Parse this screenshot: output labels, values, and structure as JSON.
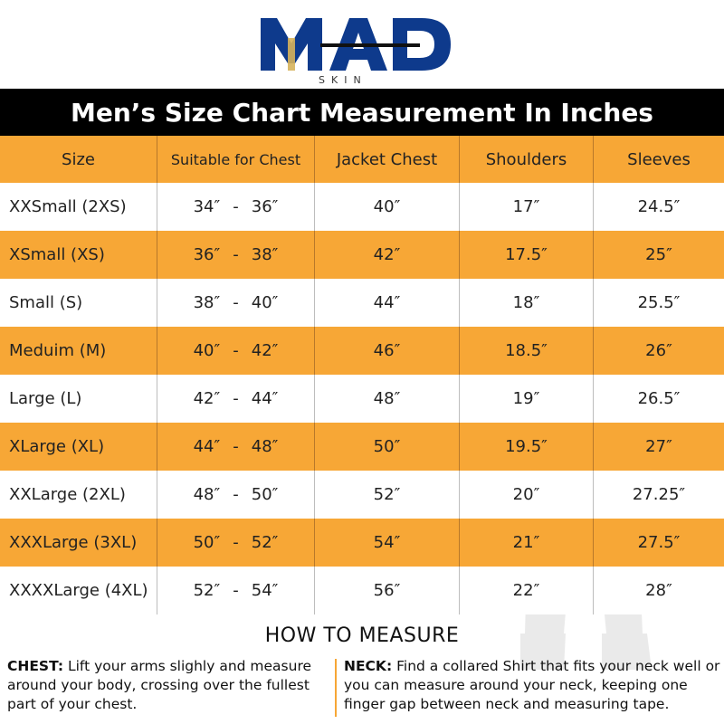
{
  "logo": {
    "main": "MAD",
    "sub": "SKIN"
  },
  "title": "Men’s Size Chart Measurement In Inches",
  "columns": [
    "Size",
    "Suitable for Chest",
    "Jacket Chest",
    "Shoulders",
    "Sleeves"
  ],
  "rows": [
    {
      "size": "XXSmall (2XS)",
      "chest_from": "34″",
      "sep": "-",
      "chest_to": "36″",
      "jacket": "40″",
      "shoulders": "17″",
      "sleeves": "24.5″"
    },
    {
      "size": "XSmall (XS)",
      "chest_from": "36″",
      "sep": "-",
      "chest_to": "38″",
      "jacket": "42″",
      "shoulders": "17.5″",
      "sleeves": "25″"
    },
    {
      "size": "Small (S)",
      "chest_from": "38″",
      "sep": "-",
      "chest_to": "40″",
      "jacket": "44″",
      "shoulders": "18″",
      "sleeves": "25.5″"
    },
    {
      "size": "Meduim (M)",
      "chest_from": "40″",
      "sep": "-",
      "chest_to": "42″",
      "jacket": "46″",
      "shoulders": "18.5″",
      "sleeves": "26″"
    },
    {
      "size": "Large (L)",
      "chest_from": "42″",
      "sep": "-",
      "chest_to": "44″",
      "jacket": "48″",
      "shoulders": "19″",
      "sleeves": "26.5″"
    },
    {
      "size": "XLarge (XL)",
      "chest_from": "44″",
      "sep": "-",
      "chest_to": "48″",
      "jacket": "50″",
      "shoulders": "19.5″",
      "sleeves": "27″"
    },
    {
      "size": "XXLarge (2XL)",
      "chest_from": "48″",
      "sep": "-",
      "chest_to": "50″",
      "jacket": "52″",
      "shoulders": "20″",
      "sleeves": "27.25″"
    },
    {
      "size": "XXXLarge (3XL)",
      "chest_from": "50″",
      "sep": "-",
      "chest_to": "52″",
      "jacket": "54″",
      "shoulders": "21″",
      "sleeves": "27.5″"
    },
    {
      "size": "XXXXLarge (4XL)",
      "chest_from": "52″",
      "sep": "-",
      "chest_to": "54″",
      "jacket": "56″",
      "shoulders": "22″",
      "sleeves": "28″"
    }
  ],
  "how_to_measure": {
    "title": "HOW TO MEASURE",
    "chest_label": "CHEST:",
    "chest_text": "Lift your arms slighly and measure around your body, crossing over the fullest part of your chest.",
    "neck_label": "NECK:",
    "neck_text": "Find a collared Shirt that fits your neck well or you can measure around your neck, keeping one finger gap between neck and measuring tape."
  },
  "colors": {
    "accent": "#f7a736",
    "logo_blue": "#0e3a8c",
    "title_bar": "#000000"
  }
}
